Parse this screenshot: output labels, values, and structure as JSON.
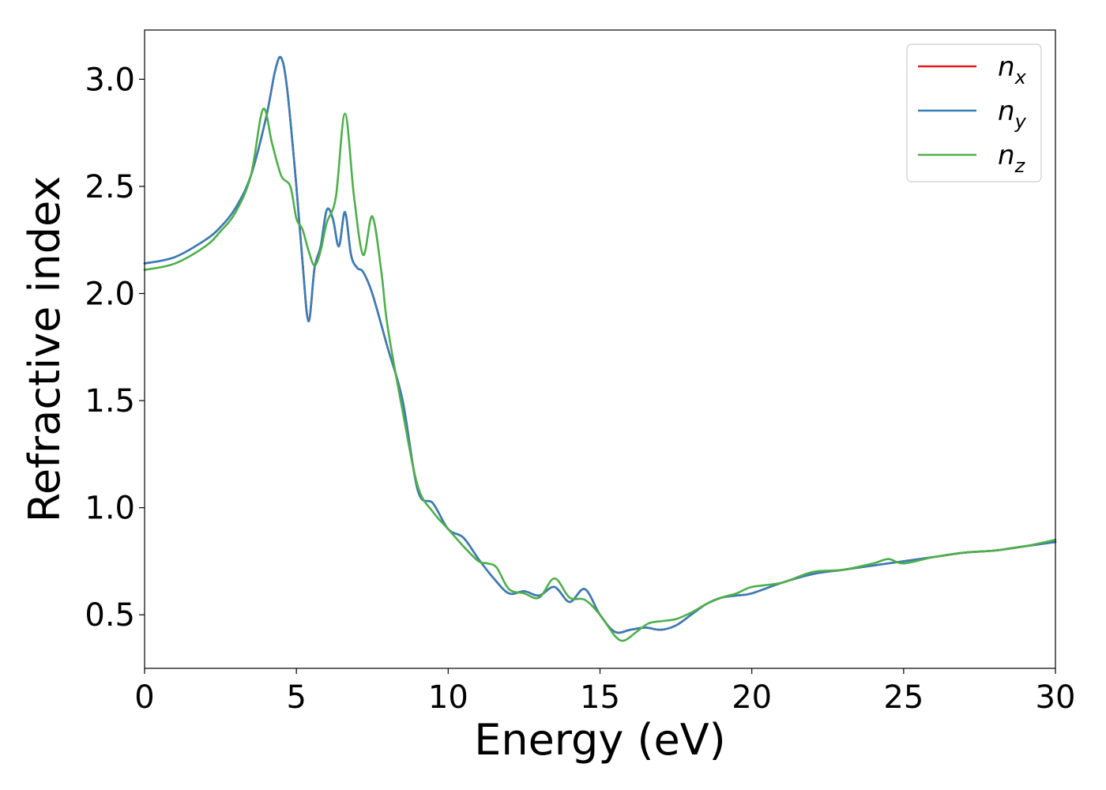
{
  "chart_data": {
    "type": "line",
    "title": "",
    "xlabel": "Energy (eV)",
    "ylabel": "Refractive index",
    "xlim": [
      0,
      30
    ],
    "ylim": [
      0.25,
      3.23
    ],
    "xticks": [
      0,
      5,
      10,
      15,
      20,
      25,
      30
    ],
    "xtick_labels": [
      "0",
      "5",
      "10",
      "15",
      "20",
      "25",
      "30"
    ],
    "yticks": [
      0.5,
      1.0,
      1.5,
      2.0,
      2.5,
      3.0
    ],
    "ytick_labels": [
      "0.5",
      "1.0",
      "1.5",
      "2.0",
      "2.5",
      "3.0"
    ],
    "grid": false,
    "legend": {
      "position": "top-right"
    },
    "series": [
      {
        "name": "n_x",
        "label_base": "n",
        "label_sub": "x",
        "color": "#e41a1c",
        "x": [
          0,
          1,
          2,
          2.5,
          3,
          3.5,
          4,
          4.3,
          4.5,
          4.7,
          5,
          5.2,
          5.4,
          5.6,
          5.8,
          6.0,
          6.2,
          6.4,
          6.6,
          6.8,
          7.0,
          7.2,
          7.5,
          8.0,
          8.5,
          9.0,
          9.5,
          10.0,
          10.5,
          11.0,
          11.5,
          12.0,
          12.5,
          13.0,
          13.5,
          14.0,
          14.5,
          15.0,
          15.5,
          16.0,
          16.5,
          17.0,
          17.5,
          18.0,
          18.5,
          19.0,
          19.5,
          20.0,
          21,
          22,
          23,
          24,
          25,
          26,
          27,
          28,
          29,
          30
        ],
        "y": [
          2.14,
          2.17,
          2.25,
          2.31,
          2.4,
          2.55,
          2.82,
          3.04,
          3.1,
          2.95,
          2.5,
          2.15,
          1.87,
          2.12,
          2.22,
          2.39,
          2.35,
          2.22,
          2.38,
          2.18,
          2.12,
          2.1,
          2.0,
          1.75,
          1.5,
          1.08,
          1.02,
          0.9,
          0.86,
          0.76,
          0.67,
          0.6,
          0.61,
          0.59,
          0.63,
          0.56,
          0.62,
          0.5,
          0.42,
          0.43,
          0.44,
          0.43,
          0.45,
          0.5,
          0.55,
          0.58,
          0.59,
          0.6,
          0.65,
          0.69,
          0.71,
          0.73,
          0.75,
          0.77,
          0.79,
          0.8,
          0.82,
          0.84
        ]
      },
      {
        "name": "n_y",
        "label_base": "n",
        "label_sub": "y",
        "color": "#377eb8",
        "x": [
          0,
          1,
          2,
          2.5,
          3,
          3.5,
          4,
          4.3,
          4.5,
          4.7,
          5,
          5.2,
          5.4,
          5.6,
          5.8,
          6.0,
          6.2,
          6.4,
          6.6,
          6.8,
          7.0,
          7.2,
          7.5,
          8.0,
          8.5,
          9.0,
          9.5,
          10.0,
          10.5,
          11.0,
          11.5,
          12.0,
          12.5,
          13.0,
          13.5,
          14.0,
          14.5,
          15.0,
          15.5,
          16.0,
          16.5,
          17.0,
          17.5,
          18.0,
          18.5,
          19.0,
          19.5,
          20.0,
          21,
          22,
          23,
          24,
          25,
          26,
          27,
          28,
          29,
          30
        ],
        "y": [
          2.14,
          2.17,
          2.25,
          2.31,
          2.4,
          2.55,
          2.82,
          3.04,
          3.1,
          2.95,
          2.5,
          2.15,
          1.87,
          2.12,
          2.22,
          2.39,
          2.35,
          2.22,
          2.38,
          2.18,
          2.12,
          2.1,
          2.0,
          1.75,
          1.5,
          1.08,
          1.02,
          0.9,
          0.86,
          0.76,
          0.67,
          0.6,
          0.61,
          0.59,
          0.63,
          0.56,
          0.62,
          0.5,
          0.42,
          0.43,
          0.44,
          0.43,
          0.45,
          0.5,
          0.55,
          0.58,
          0.59,
          0.6,
          0.65,
          0.69,
          0.71,
          0.73,
          0.75,
          0.77,
          0.79,
          0.8,
          0.82,
          0.84
        ]
      },
      {
        "name": "n_z",
        "label_base": "n",
        "label_sub": "z",
        "color": "#4daf4a",
        "x": [
          0,
          1,
          2,
          2.5,
          3,
          3.5,
          3.9,
          4.2,
          4.5,
          4.8,
          5.0,
          5.2,
          5.4,
          5.6,
          5.8,
          6.0,
          6.3,
          6.6,
          6.9,
          7.2,
          7.5,
          7.8,
          8.0,
          8.5,
          9.0,
          9.5,
          10.0,
          10.5,
          11.0,
          11.3,
          11.6,
          12.0,
          12.5,
          13.0,
          13.5,
          14.0,
          14.5,
          15.0,
          15.5,
          15.8,
          16.2,
          16.6,
          17.0,
          17.5,
          18.0,
          18.5,
          19.0,
          19.5,
          20.0,
          21,
          22,
          23,
          24,
          24.5,
          25,
          26,
          27,
          28,
          29,
          30
        ],
        "y": [
          2.11,
          2.14,
          2.22,
          2.29,
          2.38,
          2.55,
          2.86,
          2.7,
          2.55,
          2.5,
          2.35,
          2.3,
          2.2,
          2.13,
          2.2,
          2.33,
          2.45,
          2.84,
          2.45,
          2.18,
          2.36,
          2.1,
          1.85,
          1.45,
          1.1,
          0.98,
          0.9,
          0.82,
          0.75,
          0.74,
          0.72,
          0.62,
          0.6,
          0.58,
          0.67,
          0.58,
          0.57,
          0.5,
          0.4,
          0.38,
          0.42,
          0.46,
          0.47,
          0.48,
          0.51,
          0.55,
          0.58,
          0.6,
          0.63,
          0.65,
          0.7,
          0.71,
          0.74,
          0.76,
          0.74,
          0.77,
          0.79,
          0.8,
          0.82,
          0.85
        ]
      }
    ]
  }
}
